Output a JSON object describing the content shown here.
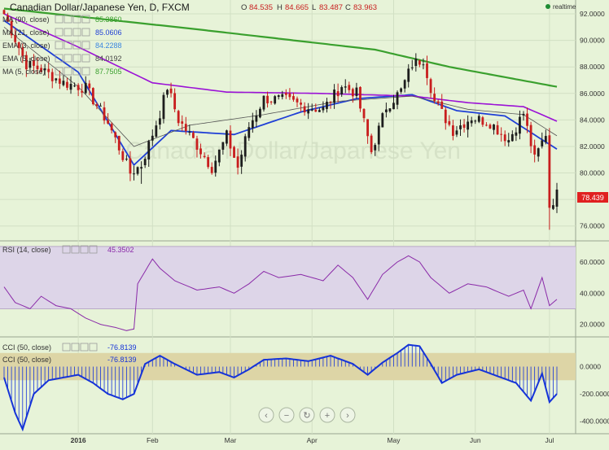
{
  "header": {
    "title": "Canadian Dollar/Japanese Yen, D, FXCM",
    "ohlc": [
      {
        "key": "O",
        "value": "84.535"
      },
      {
        "key": "H",
        "value": "84.665"
      },
      {
        "key": "L",
        "value": "83.487"
      },
      {
        "key": "C",
        "value": "83.963"
      }
    ],
    "realtime": "realtime"
  },
  "watermark": "Canadian Dollar/Japanese Yen",
  "last_price": "78.439",
  "legend": [
    {
      "label": "MA (90, close)",
      "value": "85.3860",
      "color": "#3aa02e"
    },
    {
      "label": "MA (21, close)",
      "value": "85.0606",
      "color": "#1f3fd6"
    },
    {
      "label": "EMA (3, close)",
      "value": "84.2288",
      "color": "#3a86e0"
    },
    {
      "label": "EMA (5, close)",
      "value": "84.0192",
      "color": "#444444"
    },
    {
      "label": "MA (5, close)",
      "value": "87.7505",
      "color": "#3aa02e"
    }
  ],
  "rsi_label": "RSI (14, close)",
  "rsi_value": "45.3502",
  "cci_label": "CCI (50, close)",
  "cci_value": "-76.8139",
  "colors": {
    "background": "#e7f3d8",
    "candle_up": "#1d1d1d",
    "candle_down": "#c81e1e",
    "ma90": "#3aa02e",
    "ma21": "#1f3fd6",
    "ma_purple": "#9b12d6",
    "rsi_line": "#8a2aa8",
    "rsi_band": "#ddd5e8",
    "cci_band": "#ddd5a6",
    "cci_line": "#1533d8",
    "last_price_tag": "#e02020"
  },
  "nav_buttons": [
    "chevron-left-icon",
    "minus-icon",
    "reset-icon",
    "plus-icon",
    "chevron-right-icon"
  ],
  "chart_data": {
    "type": "candlestick",
    "price_axis": {
      "ticks": [
        "92.0000",
        "90.0000",
        "88.0000",
        "86.0000",
        "84.0000",
        "82.0000",
        "80.0000",
        "78.0000",
        "76.0000"
      ],
      "ylim": [
        75.0,
        92.8
      ]
    },
    "x_labels": [
      "2016",
      "Feb",
      "Mar",
      "Apr",
      "May",
      "Jun",
      "Jul"
    ],
    "bars_count": 150,
    "ohlc_anchors": [
      {
        "i": 0,
        "c": 92.0
      },
      {
        "i": 6,
        "c": 88.2
      },
      {
        "i": 10,
        "c": 87.8
      },
      {
        "i": 16,
        "c": 86.8
      },
      {
        "i": 22,
        "c": 86.4
      },
      {
        "i": 28,
        "c": 83.8
      },
      {
        "i": 34,
        "c": 80.0
      },
      {
        "i": 37,
        "c": 80.6
      },
      {
        "i": 42,
        "c": 84.5
      },
      {
        "i": 44,
        "c": 86.5
      },
      {
        "i": 47,
        "c": 84.0
      },
      {
        "i": 51,
        "c": 82.5
      },
      {
        "i": 56,
        "c": 80.4
      },
      {
        "i": 60,
        "c": 82.8
      },
      {
        "i": 63,
        "c": 80.4
      },
      {
        "i": 66,
        "c": 83.5
      },
      {
        "i": 70,
        "c": 85.6
      },
      {
        "i": 76,
        "c": 85.5
      },
      {
        "i": 81,
        "c": 85.0
      },
      {
        "i": 86,
        "c": 84.8
      },
      {
        "i": 91,
        "c": 86.6
      },
      {
        "i": 95,
        "c": 86.0
      },
      {
        "i": 99,
        "c": 81.6
      },
      {
        "i": 103,
        "c": 85.0
      },
      {
        "i": 107,
        "c": 86.2
      },
      {
        "i": 110,
        "c": 88.2
      },
      {
        "i": 113,
        "c": 88.6
      },
      {
        "i": 116,
        "c": 85.4
      },
      {
        "i": 121,
        "c": 83.2
      },
      {
        "i": 126,
        "c": 84.2
      },
      {
        "i": 131,
        "c": 83.8
      },
      {
        "i": 136,
        "c": 82.5
      },
      {
        "i": 140,
        "c": 84.5
      },
      {
        "i": 143,
        "c": 81.0
      },
      {
        "i": 146,
        "c": 83.0
      },
      {
        "i": 147,
        "c": 77.5
      },
      {
        "i": 149,
        "c": 78.4
      }
    ],
    "series": [
      {
        "name": "MA (90, close)",
        "points": [
          [
            0,
            92.4
          ],
          [
            50,
            90.9
          ],
          [
            100,
            89.3
          ],
          [
            120,
            88.0
          ],
          [
            149,
            86.5
          ]
        ]
      },
      {
        "name": "MA (21, close)",
        "points": [
          [
            0,
            91.5
          ],
          [
            20,
            87.6
          ],
          [
            35,
            80.6
          ],
          [
            45,
            83.2
          ],
          [
            62,
            82.9
          ],
          [
            80,
            84.6
          ],
          [
            95,
            85.6
          ],
          [
            110,
            85.9
          ],
          [
            122,
            84.7
          ],
          [
            135,
            84.3
          ],
          [
            149,
            81.8
          ]
        ]
      },
      {
        "name": "purple",
        "points": [
          [
            0,
            92.0
          ],
          [
            20,
            89.5
          ],
          [
            40,
            86.8
          ],
          [
            60,
            86.1
          ],
          [
            85,
            86.0
          ],
          [
            110,
            85.8
          ],
          [
            125,
            85.3
          ],
          [
            140,
            85.0
          ],
          [
            149,
            83.9
          ]
        ]
      },
      {
        "name": "EMA (5, close)",
        "points": [
          [
            0,
            91.0
          ],
          [
            20,
            86.5
          ],
          [
            35,
            82.0
          ],
          [
            50,
            83.6
          ],
          [
            70,
            84.4
          ],
          [
            90,
            85.4
          ],
          [
            110,
            85.8
          ],
          [
            125,
            84.8
          ],
          [
            140,
            84.4
          ],
          [
            149,
            82.8
          ]
        ]
      }
    ],
    "rsi": {
      "axis_ticks": [
        "60.0000",
        "40.0000",
        "20.0000"
      ],
      "ylim": [
        13.0,
        72.0
      ],
      "band": [
        30,
        70
      ],
      "values": [
        [
          0,
          44
        ],
        [
          3,
          34
        ],
        [
          7,
          30
        ],
        [
          10,
          38
        ],
        [
          14,
          32
        ],
        [
          18,
          30
        ],
        [
          22,
          24
        ],
        [
          26,
          20
        ],
        [
          30,
          18
        ],
        [
          33,
          16
        ],
        [
          35,
          17
        ],
        [
          36,
          46
        ],
        [
          40,
          62
        ],
        [
          42,
          56
        ],
        [
          46,
          48
        ],
        [
          52,
          42
        ],
        [
          58,
          44
        ],
        [
          62,
          40
        ],
        [
          66,
          46
        ],
        [
          70,
          54
        ],
        [
          74,
          50
        ],
        [
          80,
          52
        ],
        [
          86,
          48
        ],
        [
          90,
          58
        ],
        [
          94,
          50
        ],
        [
          98,
          36
        ],
        [
          102,
          52
        ],
        [
          106,
          60
        ],
        [
          109,
          64
        ],
        [
          112,
          60
        ],
        [
          115,
          50
        ],
        [
          120,
          40
        ],
        [
          125,
          46
        ],
        [
          130,
          44
        ],
        [
          136,
          38
        ],
        [
          140,
          42
        ],
        [
          142,
          30
        ],
        [
          145,
          50
        ],
        [
          147,
          32
        ],
        [
          149,
          36
        ]
      ]
    },
    "cci": {
      "axis_ticks": [
        "0.0000",
        "-200.0000",
        "-400.0000"
      ],
      "ylim": [
        -480.0,
        200.0
      ],
      "band": [
        -100,
        100
      ],
      "values": [
        [
          0,
          -80
        ],
        [
          3,
          -340
        ],
        [
          5,
          -460
        ],
        [
          8,
          -200
        ],
        [
          12,
          -100
        ],
        [
          16,
          -80
        ],
        [
          20,
          -60
        ],
        [
          24,
          -120
        ],
        [
          28,
          -200
        ],
        [
          32,
          -240
        ],
        [
          35,
          -200
        ],
        [
          38,
          20
        ],
        [
          42,
          80
        ],
        [
          46,
          20
        ],
        [
          52,
          -60
        ],
        [
          58,
          -40
        ],
        [
          62,
          -80
        ],
        [
          66,
          -20
        ],
        [
          70,
          50
        ],
        [
          76,
          60
        ],
        [
          82,
          40
        ],
        [
          88,
          80
        ],
        [
          94,
          20
        ],
        [
          98,
          -60
        ],
        [
          102,
          30
        ],
        [
          106,
          100
        ],
        [
          109,
          160
        ],
        [
          112,
          150
        ],
        [
          115,
          20
        ],
        [
          118,
          -120
        ],
        [
          122,
          -60
        ],
        [
          128,
          -20
        ],
        [
          134,
          -80
        ],
        [
          138,
          -120
        ],
        [
          142,
          -250
        ],
        [
          145,
          -50
        ],
        [
          147,
          -260
        ],
        [
          149,
          -200
        ]
      ]
    }
  }
}
